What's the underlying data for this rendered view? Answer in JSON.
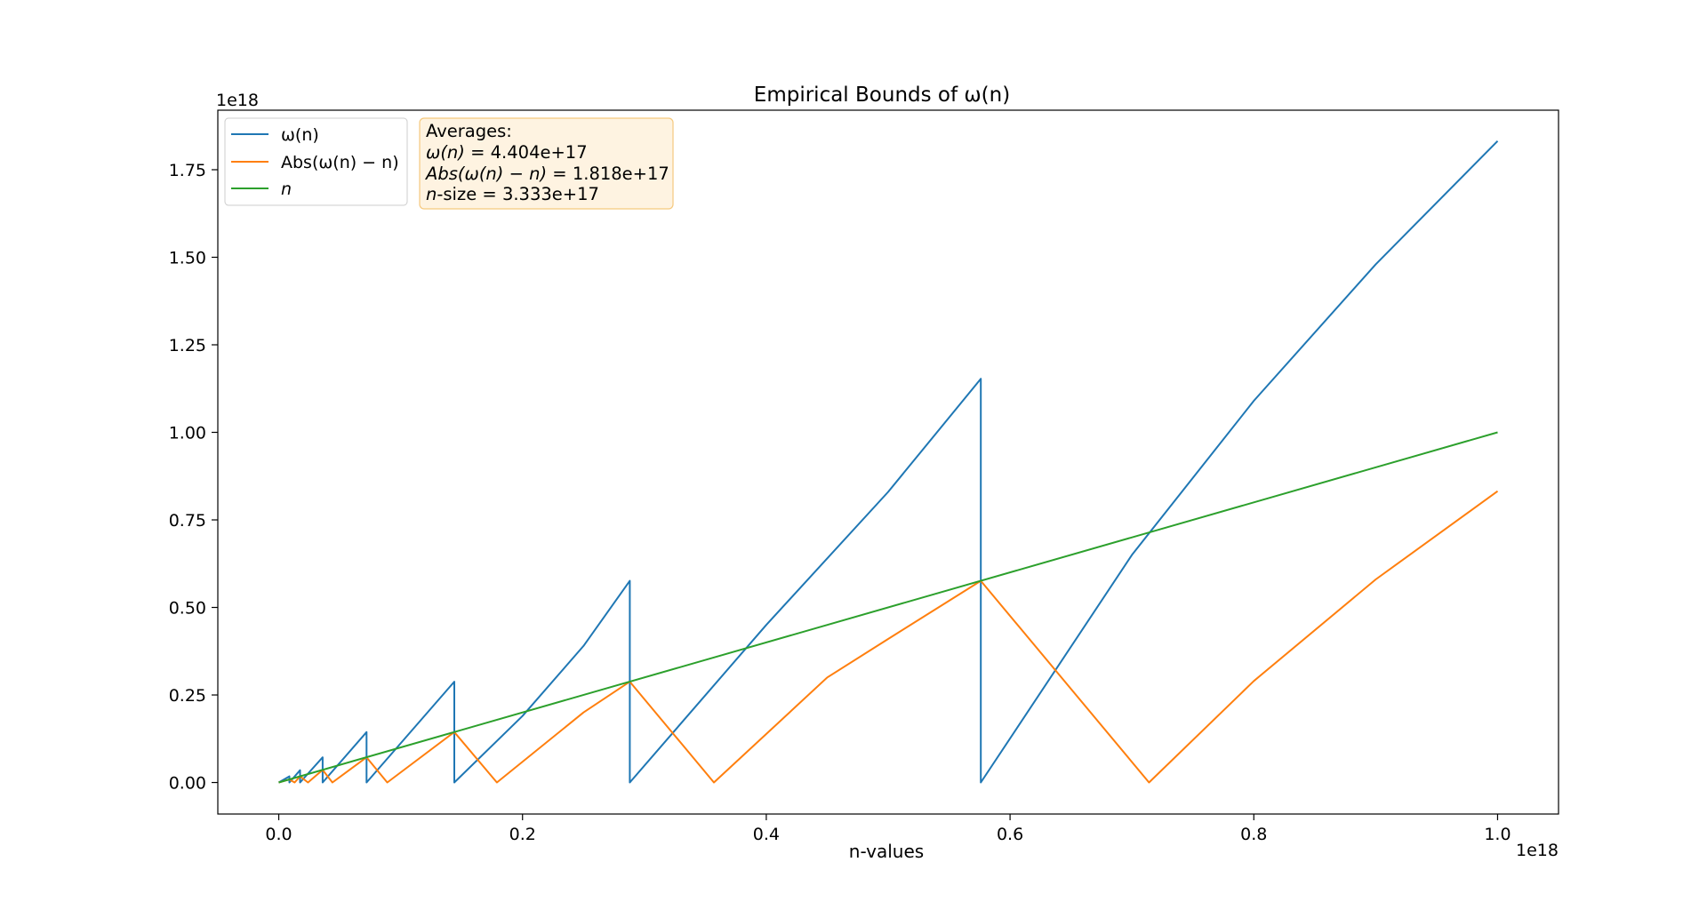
{
  "chart_data": {
    "type": "line",
    "title": "Empirical Bounds of ω(n)",
    "xlabel": "n-values",
    "ylabel": "",
    "x_offset_label": "1e18",
    "y_offset_label": "1e18",
    "xlim": [
      -0.05,
      1.05
    ],
    "ylim": [
      -0.09,
      1.92
    ],
    "x_ticks": [
      "0.0",
      "0.2",
      "0.4",
      "0.6",
      "0.8",
      "1.0"
    ],
    "y_ticks": [
      "0.00",
      "0.25",
      "0.50",
      "0.75",
      "1.00",
      "1.25",
      "1.50",
      "1.75"
    ],
    "grid": false,
    "legend_position": "top-left",
    "series": [
      {
        "name": "ω(n)",
        "color": "#1f77b4",
        "points": [
          [
            0.0,
            0.0
          ],
          [
            0.00875,
            0.0175
          ],
          [
            0.00875,
            0.0
          ],
          [
            0.0175,
            0.035
          ],
          [
            0.0175,
            0.0
          ],
          [
            0.036,
            0.072
          ],
          [
            0.036,
            0.0
          ],
          [
            0.072,
            0.144
          ],
          [
            0.072,
            0.0
          ],
          [
            0.144,
            0.288
          ],
          [
            0.144,
            0.0
          ],
          [
            0.2,
            0.19
          ],
          [
            0.25,
            0.39
          ],
          [
            0.288,
            0.576
          ],
          [
            0.288,
            0.0
          ],
          [
            0.4,
            0.45
          ],
          [
            0.5,
            0.83
          ],
          [
            0.576,
            1.153
          ],
          [
            0.576,
            0.0
          ],
          [
            0.7,
            0.65
          ],
          [
            0.8,
            1.09
          ],
          [
            0.9,
            1.48
          ],
          [
            1.0,
            1.832
          ]
        ]
      },
      {
        "name": "Abs(ω(n) − n)",
        "color": "#ff7f0e",
        "points": [
          [
            0.0,
            0.0
          ],
          [
            0.00875,
            0.00875
          ],
          [
            0.013,
            0.0
          ],
          [
            0.0175,
            0.0175
          ],
          [
            0.024,
            0.0
          ],
          [
            0.036,
            0.036
          ],
          [
            0.044,
            0.0
          ],
          [
            0.072,
            0.072
          ],
          [
            0.089,
            0.0
          ],
          [
            0.144,
            0.144
          ],
          [
            0.179,
            0.0
          ],
          [
            0.25,
            0.2
          ],
          [
            0.288,
            0.288
          ],
          [
            0.357,
            0.0
          ],
          [
            0.45,
            0.3
          ],
          [
            0.5,
            0.41
          ],
          [
            0.576,
            0.576
          ],
          [
            0.714,
            0.0
          ],
          [
            0.8,
            0.29
          ],
          [
            0.9,
            0.58
          ],
          [
            1.0,
            0.832
          ]
        ]
      },
      {
        "name": "n",
        "color": "#2ca02c",
        "points": [
          [
            0.0,
            0.0
          ],
          [
            1.0,
            1.0
          ]
        ]
      }
    ],
    "averages_box": {
      "heading": "Averages:",
      "omega_label": "ω(n)",
      "omega_value": "= 4.404e+17",
      "abs_label": "Abs(ω(n) − n)",
      "abs_value": "= 1.818e+17",
      "size_label": "n",
      "size_value": "-size = 3.333e+17",
      "background": "#fef3e1",
      "border": "#f5c97e"
    }
  }
}
